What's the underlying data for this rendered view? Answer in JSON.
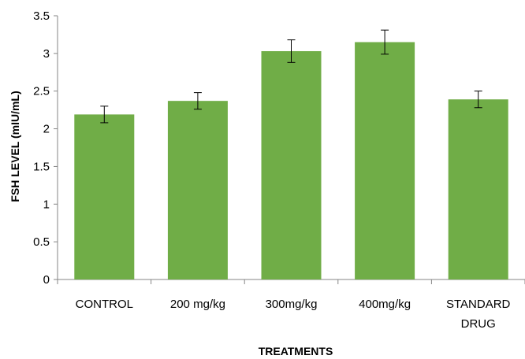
{
  "chart_data": {
    "type": "bar",
    "title": "",
    "xlabel": "TREATMENTS",
    "ylabel": "FSH LEVEL (mIU/mL)",
    "categories": [
      [
        "CONTROL"
      ],
      [
        "200 mg/kg"
      ],
      [
        "300mg/kg"
      ],
      [
        "400mg/kg"
      ],
      [
        "STANDARD",
        "DRUG"
      ]
    ],
    "values": [
      2.19,
      2.37,
      3.03,
      3.15,
      2.39
    ],
    "error_bars": [
      0.11,
      0.11,
      0.15,
      0.16,
      0.11
    ],
    "ylim": [
      0,
      3.5
    ],
    "yticks": [
      "0",
      "0.5",
      "1",
      "1.5",
      "2",
      "2.5",
      "3",
      "3.5"
    ],
    "bar_color": "#70AD47",
    "grid": false,
    "legend": "none"
  }
}
